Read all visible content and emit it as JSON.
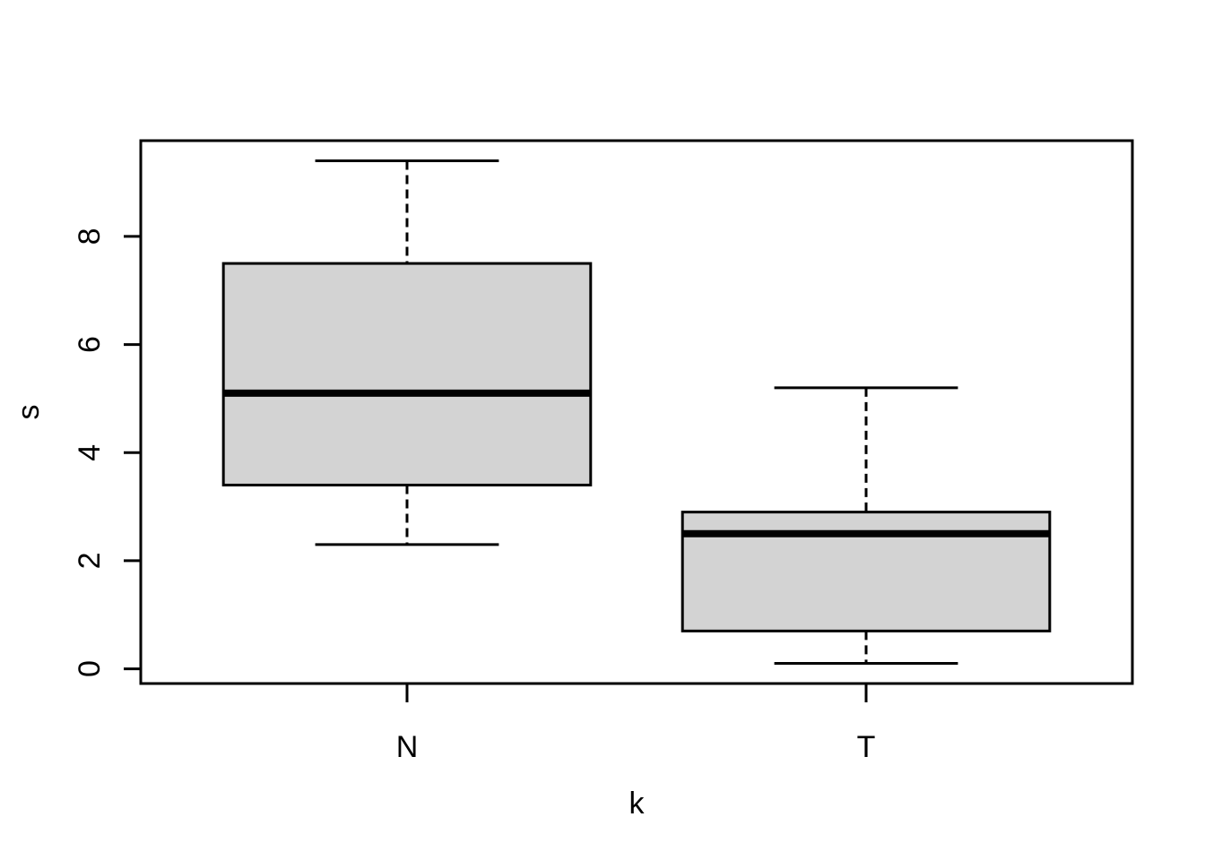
{
  "chart_data": {
    "type": "boxplot",
    "title": "",
    "xlabel": "k",
    "ylabel": "s",
    "categories": [
      "N",
      "T"
    ],
    "x_positions": [
      1,
      2
    ],
    "groups": [
      {
        "label": "N",
        "whisker_low": 2.3,
        "q1": 3.4,
        "median": 5.1,
        "q3": 7.5,
        "whisker_high": 9.4
      },
      {
        "label": "T",
        "whisker_low": 0.1,
        "q1": 0.7,
        "median": 2.5,
        "q3": 2.9,
        "whisker_high": 5.2
      }
    ],
    "y_ticks": [
      0,
      2,
      4,
      6,
      8
    ],
    "ylim": [
      -0.272,
      9.772
    ],
    "xlim": [
      0.42,
      2.58
    ],
    "box_width": 0.8,
    "cap_width": 0.4,
    "grid": false,
    "legend": false,
    "box_fill": "#d3d3d3",
    "line_color": "#000000",
    "background": "#ffffff"
  }
}
